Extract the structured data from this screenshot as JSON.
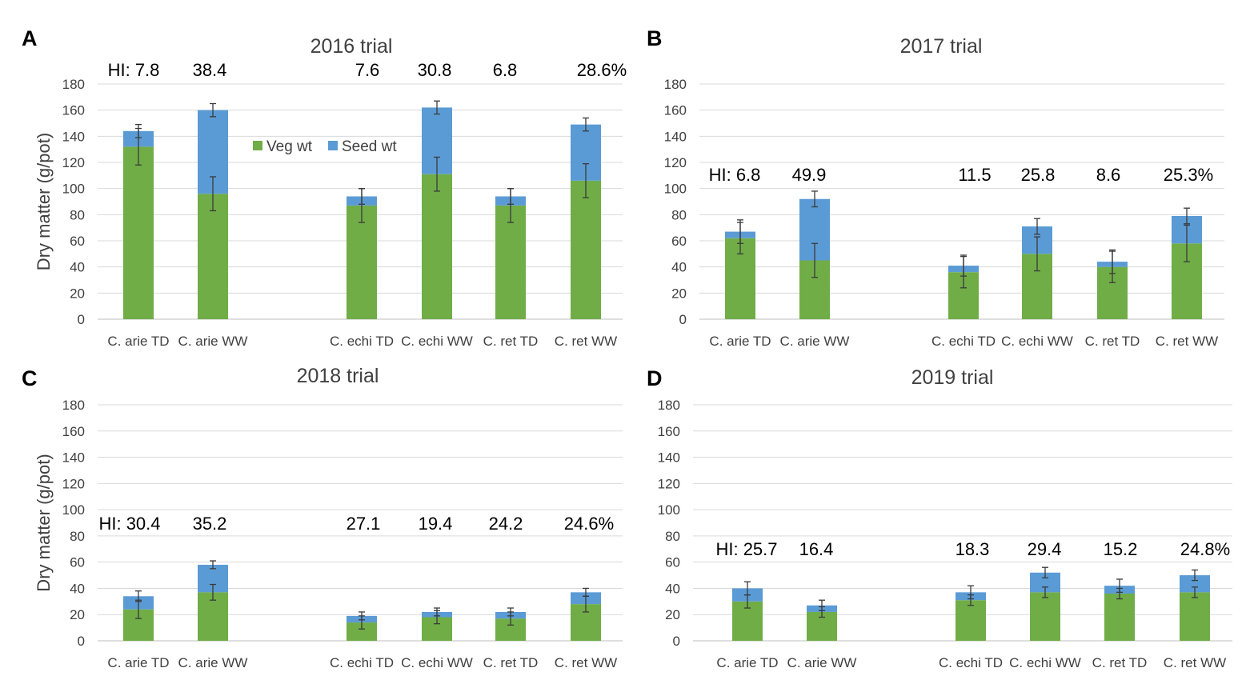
{
  "colors": {
    "veg": "#70AD47",
    "seed": "#5B9BD5"
  },
  "legend": [
    {
      "key": "veg",
      "label": "Veg wt"
    },
    {
      "key": "seed",
      "label": "Seed wt"
    }
  ],
  "chart_data": [
    {
      "panel": "A",
      "type": "bar",
      "stacked": true,
      "title": "2016 trial",
      "ylabel": "Dry matter (g/pot)",
      "ylim": [
        0,
        180
      ],
      "yticks": [
        0,
        20,
        40,
        60,
        80,
        100,
        120,
        140,
        160,
        180
      ],
      "categories": [
        "C. arie TD",
        "C. arie WW",
        "C. echi TD",
        "C. echi WW",
        "C. ret TD",
        "C. ret WW"
      ],
      "hi_labels": [
        "HI: 7.8",
        "38.4",
        "7.6",
        "30.8",
        "6.8",
        "28.6%"
      ],
      "series": [
        {
          "name": "Veg wt",
          "values": [
            132,
            96,
            87,
            111,
            87,
            106
          ],
          "errors": [
            14,
            13,
            13,
            13,
            13,
            13
          ]
        },
        {
          "name": "Seed wt",
          "values": [
            12,
            64,
            7,
            51,
            7,
            43
          ],
          "errors": [
            5,
            5,
            6,
            5,
            6,
            5
          ]
        }
      ]
    },
    {
      "panel": "B",
      "type": "bar",
      "stacked": true,
      "title": "2017 trial",
      "ylabel": "",
      "ylim": [
        0,
        180
      ],
      "yticks": [
        0,
        20,
        40,
        60,
        80,
        100,
        120,
        140,
        160,
        180
      ],
      "categories": [
        "C. arie TD",
        "C. arie WW",
        "C. echi TD",
        "C. echi WW",
        "C. ret TD",
        "C. ret WW"
      ],
      "hi_labels": [
        "HI: 6.8",
        "49.9",
        "11.5",
        "25.8",
        "8.6",
        "25.3%"
      ],
      "series": [
        {
          "name": "Veg wt",
          "values": [
            62,
            45,
            36,
            50,
            40,
            58
          ],
          "errors": [
            12,
            13,
            12,
            13,
            12,
            14
          ]
        },
        {
          "name": "Seed wt",
          "values": [
            5,
            47,
            5,
            21,
            4,
            21
          ],
          "errors": [
            9,
            6,
            8,
            6,
            9,
            6
          ]
        }
      ]
    },
    {
      "panel": "C",
      "type": "bar",
      "stacked": true,
      "title": "2018 trial",
      "ylabel": "Dry matter (g/pot)",
      "ylim": [
        0,
        180
      ],
      "yticks": [
        0,
        20,
        40,
        60,
        80,
        100,
        120,
        140,
        160,
        180
      ],
      "categories": [
        "C. arie TD",
        "C. arie WW",
        "C. echi TD",
        "C. echi WW",
        "C. ret TD",
        "C. ret WW"
      ],
      "hi_labels": [
        "HI: 30.4",
        "35.2",
        "27.1",
        "19.4",
        "24.2",
        "24.6%"
      ],
      "series": [
        {
          "name": "Veg wt",
          "values": [
            24,
            37,
            14,
            18,
            17,
            28
          ],
          "errors": [
            7,
            6,
            5,
            5,
            5,
            6
          ]
        },
        {
          "name": "Seed wt",
          "values": [
            10,
            21,
            5,
            4,
            5,
            9
          ],
          "errors": [
            4,
            3,
            3,
            3,
            3,
            3
          ]
        }
      ]
    },
    {
      "panel": "D",
      "type": "bar",
      "stacked": true,
      "title": "2019 trial",
      "ylabel": "",
      "ylim": [
        0,
        180
      ],
      "yticks": [
        0,
        20,
        40,
        60,
        80,
        100,
        120,
        140,
        160,
        180
      ],
      "categories": [
        "C. arie TD",
        "C. arie WW",
        "C. echi TD",
        "C. echi WW",
        "C. ret TD",
        "C. ret WW"
      ],
      "hi_labels": [
        "HI: 25.7",
        "16.4",
        "18.3",
        "29.4",
        "15.2",
        "24.8%"
      ],
      "series": [
        {
          "name": "Veg wt",
          "values": [
            30,
            22,
            31,
            37,
            36,
            37
          ],
          "errors": [
            5,
            4,
            4,
            4,
            4,
            4
          ]
        },
        {
          "name": "Seed wt",
          "values": [
            10,
            5,
            6,
            15,
            6,
            13
          ],
          "errors": [
            5,
            4,
            5,
            4,
            5,
            4
          ]
        }
      ]
    }
  ]
}
